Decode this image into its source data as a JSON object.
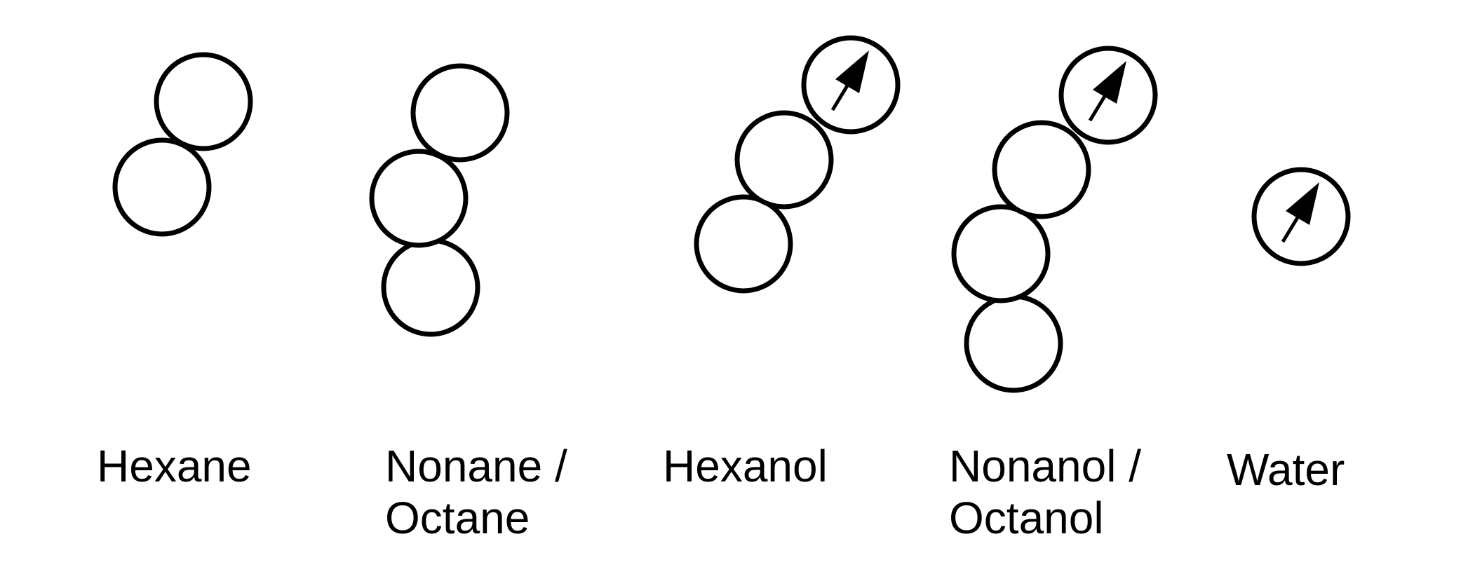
{
  "colors": {
    "stroke": "#000000",
    "text": "#000000",
    "background": "#ffffff"
  },
  "molecules": [
    {
      "id": "hexane",
      "label_lines": [
        "Hexane"
      ]
    },
    {
      "id": "nonane",
      "label_lines": [
        "Nonane /",
        "Octane"
      ]
    },
    {
      "id": "hexanol",
      "label_lines": [
        "Hexanol"
      ]
    },
    {
      "id": "nonanol",
      "label_lines": [
        "Nonanol /",
        "Octanol"
      ]
    },
    {
      "id": "water",
      "label_lines": [
        "Water"
      ]
    }
  ]
}
